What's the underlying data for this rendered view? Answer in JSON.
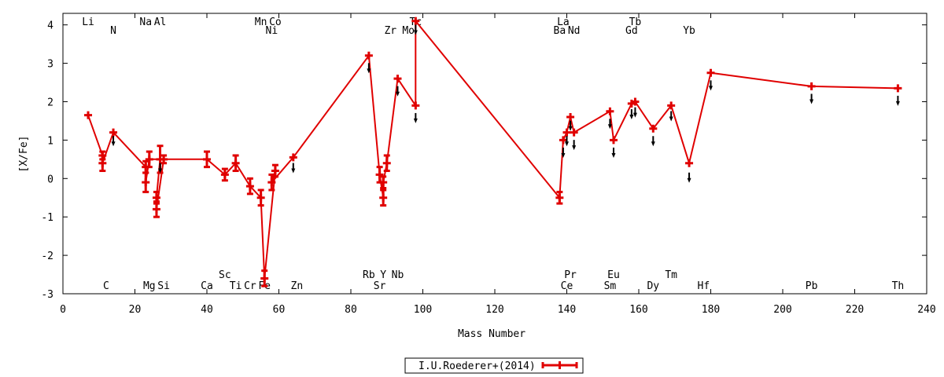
{
  "chart_data": {
    "type": "line",
    "xlabel": "Mass Number",
    "ylabel": "[X/Fe]",
    "xlim": [
      0,
      240
    ],
    "ylim": [
      -3,
      4.3
    ],
    "xticks": [
      "0",
      "20",
      "40",
      "60",
      "80",
      "100",
      "120",
      "140",
      "160",
      "180",
      "200",
      "220",
      "240"
    ],
    "yticks": [
      "-3",
      "-2",
      "-1",
      "0",
      "1",
      "2",
      "3",
      "4"
    ],
    "grid": false,
    "legend_position": "bottom-center",
    "colors": {
      "series": "#e00000",
      "arrow": "#000000",
      "axis": "#000000"
    },
    "series": [
      {
        "name": "I.U.Roederer+(2014)",
        "points": [
          {
            "x": 7,
            "y": 1.65,
            "err": 0
          },
          {
            "x": 11,
            "y": 0.6,
            "err": 0.1
          },
          {
            "x": 11,
            "y": 0.4,
            "err": 0.2
          },
          {
            "x": 14,
            "y": 1.2,
            "err": 0
          },
          {
            "x": 23,
            "y": 0.3,
            "err": 0.15
          },
          {
            "x": 23,
            "y": -0.1,
            "err": 0.25
          },
          {
            "x": 24,
            "y": 0.5,
            "err": 0.2
          },
          {
            "x": 27,
            "y": 0.5,
            "err": 0.35
          },
          {
            "x": 26,
            "y": -0.5,
            "err": 0.15
          },
          {
            "x": 26,
            "y": -0.8,
            "err": 0.2
          },
          {
            "x": 28,
            "y": 0.5,
            "err": 0.1
          },
          {
            "x": 40,
            "y": 0.5,
            "err": 0.2
          },
          {
            "x": 45,
            "y": 0.1,
            "err": 0.15
          },
          {
            "x": 48,
            "y": 0.4,
            "err": 0.2
          },
          {
            "x": 52,
            "y": -0.2,
            "err": 0.2
          },
          {
            "x": 55,
            "y": -0.5,
            "err": 0.2
          },
          {
            "x": 56,
            "y": -2.6,
            "err": 0.2
          },
          {
            "x": 59,
            "y": 0.2,
            "err": 0.15
          },
          {
            "x": 58,
            "y": -0.1,
            "err": 0.2
          },
          {
            "x": 64,
            "y": 0.55,
            "err": 0
          },
          {
            "x": 85,
            "y": 3.2,
            "err": 0
          },
          {
            "x": 88,
            "y": 0.1,
            "err": 0.2
          },
          {
            "x": 89,
            "y": -0.5,
            "err": 0.2
          },
          {
            "x": 89,
            "y": -0.1,
            "err": 0.15
          },
          {
            "x": 90,
            "y": 0.4,
            "err": 0.2
          },
          {
            "x": 93,
            "y": 2.6,
            "err": 0
          },
          {
            "x": 98,
            "y": 1.9,
            "err": 0
          },
          {
            "x": 98,
            "y": 4.1,
            "err": 0
          },
          {
            "x": 138,
            "y": -0.5,
            "err": 0.15
          },
          {
            "x": 139,
            "y": 1.0,
            "err": 0
          },
          {
            "x": 140,
            "y": 1.2,
            "err": 0
          },
          {
            "x": 141,
            "y": 1.6,
            "err": 0
          },
          {
            "x": 142,
            "y": 1.2,
            "err": 0
          },
          {
            "x": 152,
            "y": 1.75,
            "err": 0
          },
          {
            "x": 153,
            "y": 1.0,
            "err": 0
          },
          {
            "x": 158,
            "y": 1.95,
            "err": 0
          },
          {
            "x": 159,
            "y": 2.0,
            "err": 0
          },
          {
            "x": 164,
            "y": 1.3,
            "err": 0
          },
          {
            "x": 169,
            "y": 1.9,
            "err": 0
          },
          {
            "x": 174,
            "y": 0.4,
            "err": 0
          },
          {
            "x": 180,
            "y": 2.75,
            "err": 0
          },
          {
            "x": 208,
            "y": 2.4,
            "err": 0
          },
          {
            "x": 232,
            "y": 2.35,
            "err": 0
          }
        ]
      }
    ],
    "upper_limits": [
      {
        "x": 14,
        "y": 0.9
      },
      {
        "x": 27,
        "y": 0.2
      },
      {
        "x": 64,
        "y": 0.2
      },
      {
        "x": 85,
        "y": 2.8
      },
      {
        "x": 93,
        "y": 2.2
      },
      {
        "x": 98,
        "y": 1.5
      },
      {
        "x": 98,
        "y": 3.8
      },
      {
        "x": 139,
        "y": 0.6
      },
      {
        "x": 140,
        "y": 0.9
      },
      {
        "x": 141,
        "y": 1.3
      },
      {
        "x": 142,
        "y": 0.8
      },
      {
        "x": 152,
        "y": 1.35
      },
      {
        "x": 153,
        "y": 0.6
      },
      {
        "x": 158,
        "y": 1.6
      },
      {
        "x": 159,
        "y": 1.65
      },
      {
        "x": 164,
        "y": 0.9
      },
      {
        "x": 169,
        "y": 1.55
      },
      {
        "x": 174,
        "y": -0.05
      },
      {
        "x": 180,
        "y": 2.35
      },
      {
        "x": 208,
        "y": 2.0
      },
      {
        "x": 232,
        "y": 1.95
      }
    ],
    "element_labels_top": [
      {
        "text": "Li",
        "x": 7,
        "row": 1
      },
      {
        "text": "N",
        "x": 14,
        "row": 2
      },
      {
        "text": "Na",
        "x": 23,
        "row": 1
      },
      {
        "text": "Al",
        "x": 27,
        "row": 1
      },
      {
        "text": "Mn",
        "x": 55,
        "row": 1
      },
      {
        "text": "Co",
        "x": 59,
        "row": 1
      },
      {
        "text": "Ni",
        "x": 58,
        "row": 2
      },
      {
        "text": "Zr",
        "x": 91,
        "row": 2
      },
      {
        "text": "Tc",
        "x": 98,
        "row": 1
      },
      {
        "text": "Mo",
        "x": 96,
        "row": 2
      },
      {
        "text": "La",
        "x": 139,
        "row": 1
      },
      {
        "text": "Ba",
        "x": 138,
        "row": 2
      },
      {
        "text": "Nd",
        "x": 142,
        "row": 2
      },
      {
        "text": "Tb",
        "x": 159,
        "row": 1
      },
      {
        "text": "Gd",
        "x": 158,
        "row": 2
      },
      {
        "text": "Yb",
        "x": 174,
        "row": 2
      }
    ],
    "element_labels_bottom": [
      {
        "text": "C",
        "x": 12,
        "row": 2
      },
      {
        "text": "Mg",
        "x": 24,
        "row": 2
      },
      {
        "text": "Si",
        "x": 28,
        "row": 2
      },
      {
        "text": "Ca",
        "x": 40,
        "row": 2
      },
      {
        "text": "Sc",
        "x": 45,
        "row": 1
      },
      {
        "text": "Ti",
        "x": 48,
        "row": 2
      },
      {
        "text": "Cr",
        "x": 52,
        "row": 2
      },
      {
        "text": "Fe",
        "x": 56,
        "row": 2
      },
      {
        "text": "Zn",
        "x": 65,
        "row": 2
      },
      {
        "text": "Rb",
        "x": 85,
        "row": 1
      },
      {
        "text": "Y",
        "x": 89,
        "row": 1
      },
      {
        "text": "Nb",
        "x": 93,
        "row": 1
      },
      {
        "text": "Sr",
        "x": 88,
        "row": 2
      },
      {
        "text": "Pr",
        "x": 141,
        "row": 1
      },
      {
        "text": "Ce",
        "x": 140,
        "row": 2
      },
      {
        "text": "Eu",
        "x": 153,
        "row": 1
      },
      {
        "text": "Sm",
        "x": 152,
        "row": 2
      },
      {
        "text": "Dy",
        "x": 164,
        "row": 2
      },
      {
        "text": "Tm",
        "x": 169,
        "row": 1
      },
      {
        "text": "Hf",
        "x": 178,
        "row": 2
      },
      {
        "text": "Pb",
        "x": 208,
        "row": 2
      },
      {
        "text": "Th",
        "x": 232,
        "row": 2
      }
    ]
  }
}
